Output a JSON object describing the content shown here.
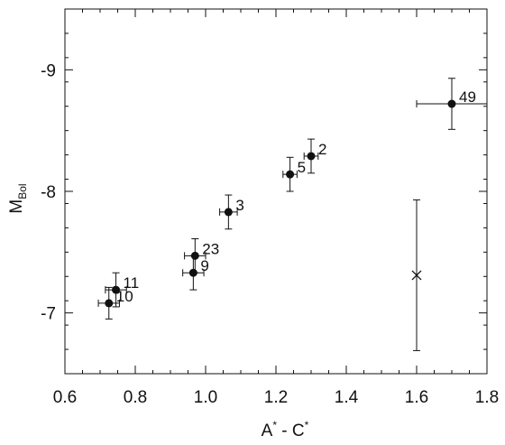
{
  "chart_data": {
    "type": "scatter",
    "xlabel": "A* - C*",
    "xlabel_parts": {
      "a": "A",
      "star1": "*",
      "mid": " - C",
      "star2": "*"
    },
    "ylabel": "M_Bol",
    "ylabel_parts": {
      "main": "M",
      "sub": "Bol"
    },
    "xlim": [
      0.6,
      1.8
    ],
    "ylim": [
      -6.5,
      -9.5
    ],
    "x_ticks": [
      0.6,
      0.8,
      1.0,
      1.2,
      1.4,
      1.6,
      1.8
    ],
    "x_tick_labels": [
      "0.6",
      "0.8",
      "1.0",
      "1.2",
      "1.4",
      "1.6",
      "1.8"
    ],
    "x_minor_step": 0.05,
    "y_ticks": [
      -7,
      -8,
      -9
    ],
    "y_tick_labels": [
      "-7",
      "-8",
      "-9"
    ],
    "y_minor_step": 0.2,
    "grid": false,
    "points": [
      {
        "label": "10",
        "x": 0.725,
        "y": -7.08,
        "xerr": 0.03,
        "yerr": 0.13
      },
      {
        "label": "11",
        "x": 0.745,
        "y": -7.19,
        "xerr": 0.03,
        "yerr": 0.14
      },
      {
        "label": "9",
        "x": 0.965,
        "y": -7.33,
        "xerr": 0.03,
        "yerr": 0.14
      },
      {
        "label": "23",
        "x": 0.97,
        "y": -7.47,
        "xerr": 0.03,
        "yerr": 0.14
      },
      {
        "label": "3",
        "x": 1.065,
        "y": -7.83,
        "xerr": 0.025,
        "yerr": 0.14
      },
      {
        "label": "5",
        "x": 1.24,
        "y": -8.14,
        "xerr": 0.02,
        "yerr": 0.14
      },
      {
        "label": "2",
        "x": 1.3,
        "y": -8.29,
        "xerr": 0.02,
        "yerr": 0.14
      },
      {
        "label": "49",
        "x": 1.7,
        "y": -8.72,
        "xerr": 0.1,
        "yerr": 0.21
      }
    ],
    "reference_marker": {
      "x": 1.6,
      "y": -7.31,
      "yerr": 0.62,
      "symbol": "x"
    }
  }
}
